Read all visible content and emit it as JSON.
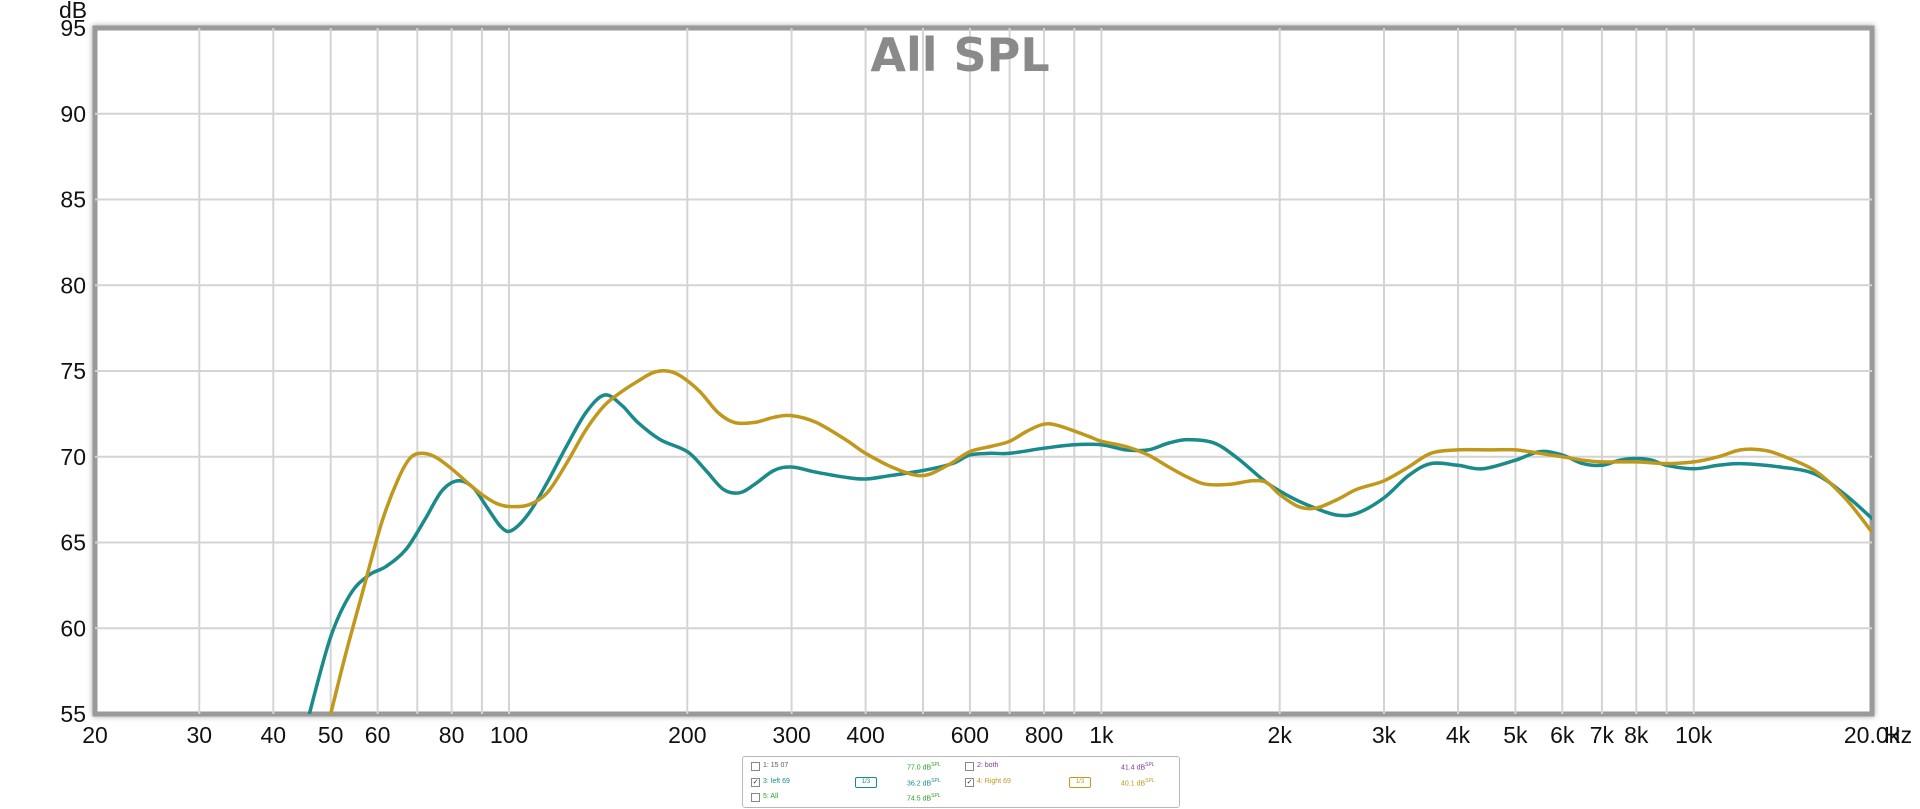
{
  "chart_data": {
    "type": "line",
    "title": "All SPL",
    "xlabel": "Hz",
    "ylabel": "dB",
    "xscale": "log",
    "xlim": [
      20,
      20000
    ],
    "ylim": [
      55,
      95
    ],
    "grid": true,
    "x_ticks": [
      {
        "value": 20,
        "label": "20"
      },
      {
        "value": 30,
        "label": "30"
      },
      {
        "value": 40,
        "label": "40"
      },
      {
        "value": 50,
        "label": "50"
      },
      {
        "value": 60,
        "label": "60"
      },
      {
        "value": 80,
        "label": "80"
      },
      {
        "value": 100,
        "label": "100"
      },
      {
        "value": 200,
        "label": "200"
      },
      {
        "value": 300,
        "label": "300"
      },
      {
        "value": 400,
        "label": "400"
      },
      {
        "value": 600,
        "label": "600"
      },
      {
        "value": 800,
        "label": "800"
      },
      {
        "value": 1000,
        "label": "1k"
      },
      {
        "value": 2000,
        "label": "2k"
      },
      {
        "value": 3000,
        "label": "3k"
      },
      {
        "value": 4000,
        "label": "4k"
      },
      {
        "value": 5000,
        "label": "5k"
      },
      {
        "value": 6000,
        "label": "6k"
      },
      {
        "value": 7000,
        "label": "7k"
      },
      {
        "value": 8000,
        "label": "8k"
      },
      {
        "value": 10000,
        "label": "10k"
      },
      {
        "value": 20000,
        "label": "20.0k"
      }
    ],
    "x_grid": [
      20,
      30,
      40,
      50,
      60,
      70,
      80,
      90,
      100,
      200,
      300,
      400,
      500,
      600,
      700,
      800,
      900,
      1000,
      2000,
      3000,
      4000,
      5000,
      6000,
      7000,
      8000,
      9000,
      10000,
      20000
    ],
    "y_ticks": [
      55,
      60,
      65,
      70,
      75,
      80,
      85,
      90,
      95
    ],
    "series": [
      {
        "name": "3: left 69",
        "color": "#1a8a8a",
        "points": [
          [
            46,
            55
          ],
          [
            50,
            59.5
          ],
          [
            54,
            62
          ],
          [
            58,
            63.1
          ],
          [
            62,
            63.6
          ],
          [
            67,
            64.6
          ],
          [
            72,
            66.3
          ],
          [
            77,
            68
          ],
          [
            82,
            68.6
          ],
          [
            87,
            68.2
          ],
          [
            92,
            67
          ],
          [
            97,
            65.9
          ],
          [
            101,
            65.7
          ],
          [
            108,
            66.7
          ],
          [
            116,
            68.5
          ],
          [
            125,
            70.6
          ],
          [
            135,
            72.6
          ],
          [
            145,
            73.6
          ],
          [
            155,
            73
          ],
          [
            165,
            72
          ],
          [
            180,
            71
          ],
          [
            200,
            70.3
          ],
          [
            215,
            69.2
          ],
          [
            230,
            68.1
          ],
          [
            245,
            67.9
          ],
          [
            260,
            68.4
          ],
          [
            280,
            69.2
          ],
          [
            300,
            69.4
          ],
          [
            330,
            69.1
          ],
          [
            370,
            68.8
          ],
          [
            400,
            68.7
          ],
          [
            440,
            68.9
          ],
          [
            500,
            69.2
          ],
          [
            560,
            69.6
          ],
          [
            600,
            70.1
          ],
          [
            650,
            70.2
          ],
          [
            700,
            70.2
          ],
          [
            800,
            70.5
          ],
          [
            900,
            70.7
          ],
          [
            1000,
            70.7
          ],
          [
            1100,
            70.4
          ],
          [
            1200,
            70.4
          ],
          [
            1300,
            70.8
          ],
          [
            1400,
            71
          ],
          [
            1550,
            70.8
          ],
          [
            1700,
            69.9
          ],
          [
            1900,
            68.5
          ],
          [
            2100,
            67.6
          ],
          [
            2300,
            67
          ],
          [
            2500,
            66.6
          ],
          [
            2700,
            66.7
          ],
          [
            3000,
            67.6
          ],
          [
            3300,
            68.9
          ],
          [
            3600,
            69.6
          ],
          [
            4000,
            69.5
          ],
          [
            4400,
            69.3
          ],
          [
            5000,
            69.8
          ],
          [
            5500,
            70.3
          ],
          [
            6000,
            70.1
          ],
          [
            6500,
            69.6
          ],
          [
            7000,
            69.5
          ],
          [
            7500,
            69.8
          ],
          [
            8000,
            69.9
          ],
          [
            8500,
            69.8
          ],
          [
            9000,
            69.5
          ],
          [
            10000,
            69.3
          ],
          [
            11000,
            69.5
          ],
          [
            12000,
            69.6
          ],
          [
            14000,
            69.4
          ],
          [
            16000,
            69
          ],
          [
            18000,
            67.8
          ],
          [
            20000,
            66.4
          ]
        ]
      },
      {
        "name": "4: Right 69",
        "color": "#c0981c",
        "points": [
          [
            50,
            55
          ],
          [
            53,
            58.5
          ],
          [
            57,
            62.5
          ],
          [
            61,
            66.2
          ],
          [
            65,
            68.7
          ],
          [
            68,
            69.9
          ],
          [
            71,
            70.2
          ],
          [
            75,
            70
          ],
          [
            80,
            69.3
          ],
          [
            85,
            68.5
          ],
          [
            90,
            67.8
          ],
          [
            95,
            67.3
          ],
          [
            100,
            67.1
          ],
          [
            108,
            67.2
          ],
          [
            116,
            67.9
          ],
          [
            125,
            69.6
          ],
          [
            135,
            71.6
          ],
          [
            145,
            73
          ],
          [
            155,
            73.8
          ],
          [
            165,
            74.4
          ],
          [
            175,
            74.9
          ],
          [
            185,
            75
          ],
          [
            195,
            74.7
          ],
          [
            210,
            73.8
          ],
          [
            225,
            72.6
          ],
          [
            240,
            72
          ],
          [
            260,
            72
          ],
          [
            280,
            72.3
          ],
          [
            300,
            72.4
          ],
          [
            330,
            72
          ],
          [
            370,
            71
          ],
          [
            400,
            70.2
          ],
          [
            450,
            69.3
          ],
          [
            500,
            68.9
          ],
          [
            550,
            69.5
          ],
          [
            600,
            70.3
          ],
          [
            650,
            70.6
          ],
          [
            700,
            70.9
          ],
          [
            750,
            71.5
          ],
          [
            800,
            71.9
          ],
          [
            850,
            71.8
          ],
          [
            950,
            71.2
          ],
          [
            1000,
            70.9
          ],
          [
            1100,
            70.6
          ],
          [
            1200,
            70.1
          ],
          [
            1300,
            69.4
          ],
          [
            1400,
            68.8
          ],
          [
            1500,
            68.4
          ],
          [
            1650,
            68.4
          ],
          [
            1800,
            68.6
          ],
          [
            1900,
            68.5
          ],
          [
            2000,
            67.8
          ],
          [
            2150,
            67.1
          ],
          [
            2300,
            67
          ],
          [
            2500,
            67.5
          ],
          [
            2700,
            68.1
          ],
          [
            3000,
            68.6
          ],
          [
            3300,
            69.4
          ],
          [
            3600,
            70.2
          ],
          [
            4000,
            70.4
          ],
          [
            4500,
            70.4
          ],
          [
            5000,
            70.4
          ],
          [
            5500,
            70.2
          ],
          [
            6000,
            70
          ],
          [
            6500,
            69.8
          ],
          [
            7000,
            69.7
          ],
          [
            8000,
            69.7
          ],
          [
            9000,
            69.6
          ],
          [
            10000,
            69.7
          ],
          [
            11000,
            70
          ],
          [
            12000,
            70.4
          ],
          [
            13000,
            70.4
          ],
          [
            14000,
            70.1
          ],
          [
            16000,
            69.2
          ],
          [
            18000,
            67.6
          ],
          [
            20000,
            65.6
          ]
        ]
      }
    ]
  },
  "legend": {
    "rows": [
      [
        {
          "checked": false,
          "name": "1: 15 07",
          "name_color": "#5a5a5a",
          "value": "77.0 dB",
          "unit": "SPL",
          "value_color": "#2aa02a"
        },
        {
          "checked": false,
          "name": "2: both",
          "name_color": "#7a3aa0",
          "value": "41.4 dB",
          "unit": "SPL",
          "value_color": "#7a3aa0"
        }
      ],
      [
        {
          "checked": true,
          "check_mark": "✓",
          "name": "3: left 69",
          "name_color": "#1a8a8a",
          "smoothing": "1/3",
          "value": "36.2 dB",
          "unit": "SPL",
          "value_color": "#1a8a8a"
        },
        {
          "checked": true,
          "check_mark": "✓",
          "name": "4: Right 69",
          "name_color": "#c0981c",
          "smoothing": "1/3",
          "value": "40.1 dB",
          "unit": "SPL",
          "value_color": "#c0981c"
        }
      ],
      [
        {
          "checked": false,
          "name": "5: All",
          "name_color": "#2aa02a",
          "value": "74.5 dB",
          "unit": "SPL",
          "value_color": "#2aa02a"
        }
      ]
    ]
  }
}
